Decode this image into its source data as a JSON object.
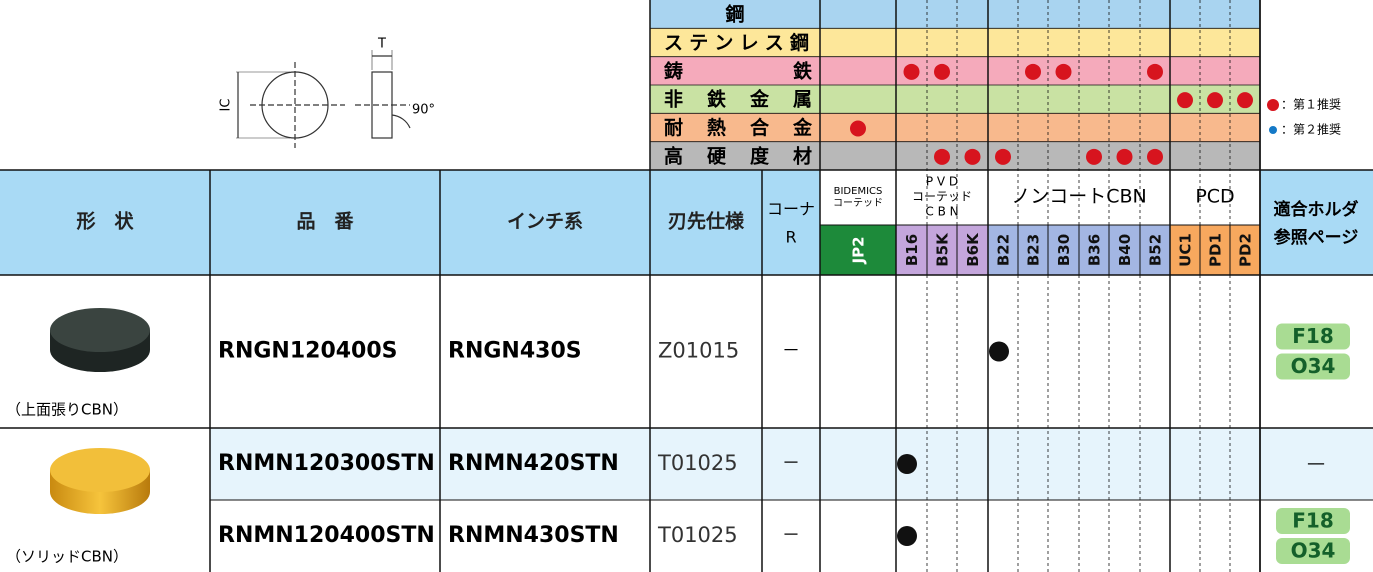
{
  "diagram": {
    "ic": "IC",
    "t": "T",
    "angle": "90°"
  },
  "materials": [
    {
      "name": "鋼",
      "color": "#a9d4f0",
      "dots": []
    },
    {
      "name": "ステンレス鋼",
      "color": "#fde79a",
      "dots": []
    },
    {
      "name": "鋳鉄",
      "color": "#f5aabb",
      "dots": [
        1,
        2,
        5,
        6,
        9
      ]
    },
    {
      "name": "非鉄金属",
      "color": "#c9e2a3",
      "dots": [
        10,
        11,
        12
      ]
    },
    {
      "name": "耐熱合金",
      "color": "#f8b98d",
      "dots": [
        0
      ]
    },
    {
      "name": "高硬度材",
      "color": "#b8b8b8",
      "dots": [
        2,
        3,
        4,
        7,
        8,
        9
      ]
    }
  ],
  "legend": [
    {
      "text": "：第１推奨",
      "color": "#d7141e"
    },
    {
      "text": "：第２推奨",
      "color": "#1479c7"
    }
  ],
  "header": {
    "shape": "形　状",
    "part": "品　番",
    "inch": "インチ系",
    "spec": "刃先仕様",
    "corner": [
      "コーナ",
      "R"
    ],
    "holder": [
      "適合ホルダ",
      "参照ページ"
    ]
  },
  "groups": [
    {
      "lines": [
        "BIDEMICS",
        "コーテッド"
      ],
      "from": 0,
      "to": 0,
      "color": "#ffffff"
    },
    {
      "lines": [
        "P V D",
        "コーテッド",
        "C B N"
      ],
      "from": 1,
      "to": 3,
      "color": "#c4a6dc"
    },
    {
      "lines": [
        "ノンコートCBN"
      ],
      "from": 4,
      "to": 9,
      "color": "#a3b6e3"
    },
    {
      "lines": [
        "PCD"
      ],
      "from": 10,
      "to": 12,
      "color": "#f7a85e"
    }
  ],
  "grades": [
    "JP2",
    "B16",
    "B5K",
    "B6K",
    "B22",
    "B23",
    "B30",
    "B36",
    "B40",
    "B52",
    "UC1",
    "PD1",
    "PD2"
  ],
  "rows": [
    {
      "part": "RNGN120400S",
      "inch": "RNGN430S",
      "spec": "Z01015",
      "corner": "－",
      "dots": [
        4
      ],
      "holder": [
        "F18",
        "O34"
      ]
    },
    {
      "part": "RNMN120300STN",
      "inch": "RNMN420STN",
      "spec": "T01025",
      "corner": "－",
      "dots": [
        1
      ],
      "holder": [],
      "holder_none": "—"
    },
    {
      "part": "RNMN120400STN",
      "inch": "RNMN430STN",
      "spec": "T01025",
      "corner": "－",
      "dots": [
        1
      ],
      "holder": [
        "F18",
        "O34"
      ]
    }
  ],
  "shapes": [
    {
      "caption": "（上面張りCBN）"
    },
    {
      "caption": "（ソリッドCBN）"
    }
  ]
}
